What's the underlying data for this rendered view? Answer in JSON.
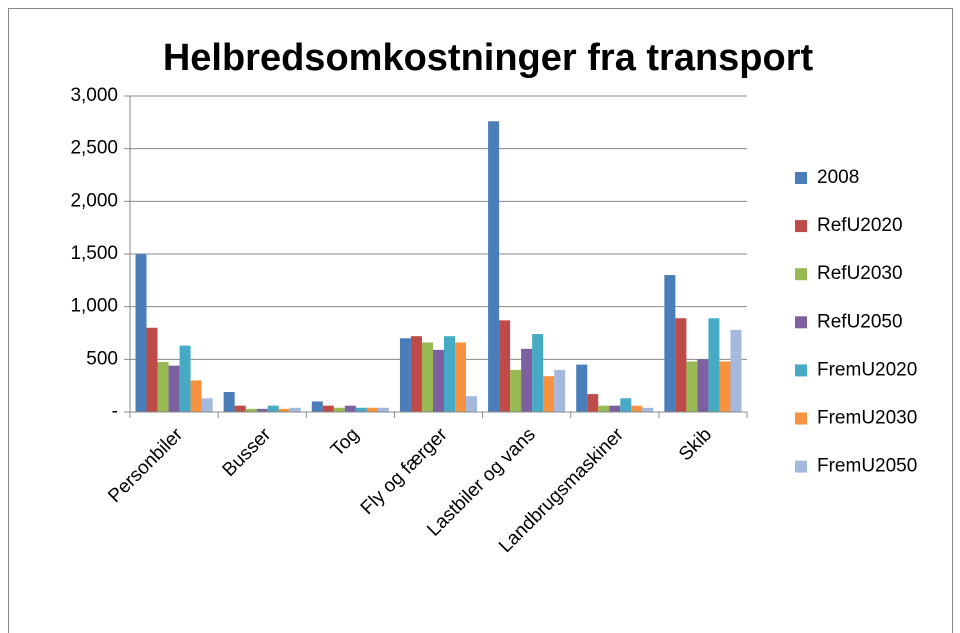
{
  "chart_data": {
    "type": "bar",
    "title": "Helbredsomkostninger fra transport",
    "categories": [
      "Personbiler",
      "Busser",
      "Tog",
      "Fly og færger",
      "Lastbiler og vans",
      "Landbrugsmaskiner",
      "Skib"
    ],
    "series": [
      {
        "name": "2008",
        "color": "#4a7ebb",
        "values": [
          1500,
          190,
          100,
          700,
          2760,
          450,
          1300
        ]
      },
      {
        "name": "RefU2020",
        "color": "#be4b48",
        "values": [
          800,
          60,
          60,
          720,
          870,
          170,
          890
        ]
      },
      {
        "name": "RefU2030",
        "color": "#98b954",
        "values": [
          475,
          30,
          40,
          660,
          400,
          60,
          480
        ]
      },
      {
        "name": "RefU2050",
        "color": "#7d60a0",
        "values": [
          440,
          30,
          60,
          590,
          600,
          60,
          500
        ]
      },
      {
        "name": "FremU2020",
        "color": "#46aac5",
        "values": [
          630,
          60,
          40,
          720,
          740,
          130,
          890
        ]
      },
      {
        "name": "FremU2030",
        "color": "#f69240",
        "values": [
          300,
          30,
          40,
          660,
          340,
          60,
          480
        ]
      },
      {
        "name": "FremU2050",
        "color": "#a5b9de",
        "values": [
          130,
          40,
          40,
          150,
          400,
          40,
          780
        ]
      }
    ],
    "ylim": [
      0,
      3000
    ],
    "yticks": [
      {
        "value": 0,
        "label": "-"
      },
      500,
      {
        "value": 1000,
        "label": "1,000"
      },
      {
        "value": 1500,
        "label": "1,500"
      },
      {
        "value": 2000,
        "label": "2,000"
      },
      {
        "value": 2500,
        "label": "2,500"
      },
      {
        "value": 3000,
        "label": "3,000"
      }
    ],
    "grid": true,
    "legend": "right"
  }
}
